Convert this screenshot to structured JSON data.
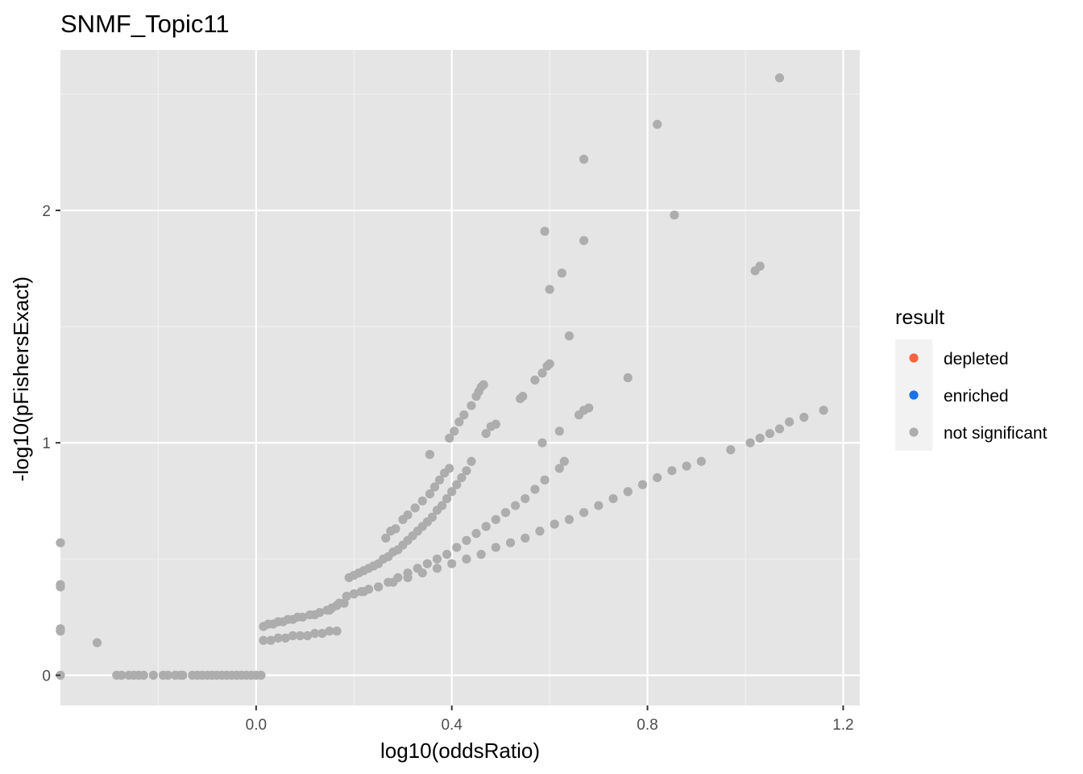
{
  "chart_data": {
    "type": "scatter",
    "title": "SNMF_Topic11",
    "xlabel": "log10(oddsRatio)",
    "ylabel": "-log10(pFishersExact)",
    "xlim": [
      -0.4,
      1.234
    ],
    "ylim": [
      -0.13,
      2.69
    ],
    "xticks": [
      0.0,
      0.4,
      0.8,
      1.2
    ],
    "xtick_labels": [
      "0.0",
      "0.4",
      "0.8",
      "1.2"
    ],
    "yticks": [
      0,
      1,
      2
    ],
    "ytick_labels": [
      "0",
      "1",
      "2"
    ],
    "grid": true,
    "legend": {
      "title": "result",
      "position": "right",
      "items": [
        {
          "label": "depleted",
          "color": "#F8633F"
        },
        {
          "label": "enriched",
          "color": "#1A73E8"
        },
        {
          "label": "not significant",
          "color": "#ADADAD"
        }
      ]
    },
    "series": [
      {
        "name": "not significant",
        "color": "#ADADAD",
        "points": [
          [
            -0.4,
            0.57
          ],
          [
            -0.4,
            0.39
          ],
          [
            -0.4,
            0.38
          ],
          [
            -0.4,
            0.2
          ],
          [
            -0.4,
            0.19
          ],
          [
            -0.4,
            0.0
          ],
          [
            -0.325,
            0.14
          ],
          [
            -0.285,
            0.0
          ],
          [
            -0.275,
            0.0
          ],
          [
            -0.26,
            0.0
          ],
          [
            -0.25,
            0.0
          ],
          [
            -0.24,
            0.0
          ],
          [
            -0.23,
            0.0
          ],
          [
            -0.21,
            0.0
          ],
          [
            -0.19,
            0.0
          ],
          [
            -0.18,
            0.0
          ],
          [
            -0.165,
            0.0
          ],
          [
            -0.155,
            0.0
          ],
          [
            -0.15,
            0.0
          ],
          [
            -0.13,
            0.0
          ],
          [
            -0.12,
            0.0
          ],
          [
            -0.11,
            0.0
          ],
          [
            -0.1,
            0.0
          ],
          [
            -0.09,
            0.0
          ],
          [
            -0.08,
            0.0
          ],
          [
            -0.07,
            0.0
          ],
          [
            -0.06,
            0.0
          ],
          [
            -0.05,
            0.0
          ],
          [
            -0.04,
            0.0
          ],
          [
            -0.03,
            0.0
          ],
          [
            -0.02,
            0.0
          ],
          [
            -0.01,
            0.0
          ],
          [
            0.0,
            0.0
          ],
          [
            0.01,
            0.0
          ],
          [
            0.015,
            0.21
          ],
          [
            0.025,
            0.22
          ],
          [
            0.035,
            0.22
          ],
          [
            0.045,
            0.23
          ],
          [
            0.055,
            0.23
          ],
          [
            0.065,
            0.24
          ],
          [
            0.075,
            0.24
          ],
          [
            0.085,
            0.25
          ],
          [
            0.095,
            0.25
          ],
          [
            0.11,
            0.26
          ],
          [
            0.12,
            0.26
          ],
          [
            0.13,
            0.27
          ],
          [
            0.145,
            0.28
          ],
          [
            0.155,
            0.29
          ],
          [
            0.165,
            0.3
          ],
          [
            0.18,
            0.31
          ],
          [
            0.19,
            0.42
          ],
          [
            0.2,
            0.43
          ],
          [
            0.21,
            0.44
          ],
          [
            0.22,
            0.45
          ],
          [
            0.23,
            0.46
          ],
          [
            0.24,
            0.47
          ],
          [
            0.25,
            0.48
          ],
          [
            0.26,
            0.5
          ],
          [
            0.27,
            0.51
          ],
          [
            0.28,
            0.53
          ],
          [
            0.29,
            0.54
          ],
          [
            0.3,
            0.56
          ],
          [
            0.31,
            0.58
          ],
          [
            0.32,
            0.6
          ],
          [
            0.33,
            0.62
          ],
          [
            0.34,
            0.64
          ],
          [
            0.35,
            0.66
          ],
          [
            0.36,
            0.68
          ],
          [
            0.37,
            0.71
          ],
          [
            0.38,
            0.73
          ],
          [
            0.39,
            0.76
          ],
          [
            0.4,
            0.79
          ],
          [
            0.41,
            0.82
          ],
          [
            0.42,
            0.85
          ],
          [
            0.43,
            0.88
          ],
          [
            0.44,
            0.92
          ],
          [
            0.265,
            0.59
          ],
          [
            0.275,
            0.62
          ],
          [
            0.285,
            0.63
          ],
          [
            0.3,
            0.67
          ],
          [
            0.31,
            0.69
          ],
          [
            0.325,
            0.72
          ],
          [
            0.34,
            0.75
          ],
          [
            0.355,
            0.78
          ],
          [
            0.365,
            0.81
          ],
          [
            0.375,
            0.84
          ],
          [
            0.385,
            0.87
          ],
          [
            0.395,
            0.89
          ],
          [
            0.355,
            0.95
          ],
          [
            0.395,
            1.02
          ],
          [
            0.405,
            1.05
          ],
          [
            0.415,
            1.09
          ],
          [
            0.425,
            1.12
          ],
          [
            0.44,
            1.16
          ],
          [
            0.45,
            1.2
          ],
          [
            0.455,
            1.22
          ],
          [
            0.46,
            1.24
          ],
          [
            0.465,
            1.25
          ],
          [
            0.015,
            0.15
          ],
          [
            0.03,
            0.15
          ],
          [
            0.045,
            0.16
          ],
          [
            0.06,
            0.16
          ],
          [
            0.075,
            0.17
          ],
          [
            0.09,
            0.17
          ],
          [
            0.105,
            0.17
          ],
          [
            0.12,
            0.18
          ],
          [
            0.135,
            0.18
          ],
          [
            0.15,
            0.19
          ],
          [
            0.165,
            0.19
          ],
          [
            0.15,
            0.28
          ],
          [
            0.17,
            0.31
          ],
          [
            0.185,
            0.34
          ],
          [
            0.2,
            0.35
          ],
          [
            0.215,
            0.36
          ],
          [
            0.23,
            0.37
          ],
          [
            0.25,
            0.38
          ],
          [
            0.27,
            0.4
          ],
          [
            0.29,
            0.42
          ],
          [
            0.31,
            0.44
          ],
          [
            0.33,
            0.46
          ],
          [
            0.35,
            0.48
          ],
          [
            0.37,
            0.5
          ],
          [
            0.39,
            0.52
          ],
          [
            0.41,
            0.55
          ],
          [
            0.43,
            0.58
          ],
          [
            0.45,
            0.61
          ],
          [
            0.47,
            0.64
          ],
          [
            0.49,
            0.67
          ],
          [
            0.51,
            0.7
          ],
          [
            0.53,
            0.73
          ],
          [
            0.55,
            0.76
          ],
          [
            0.57,
            0.8
          ],
          [
            0.59,
            0.84
          ],
          [
            0.47,
            1.04
          ],
          [
            0.48,
            1.07
          ],
          [
            0.49,
            1.08
          ],
          [
            0.54,
            1.19
          ],
          [
            0.545,
            1.2
          ],
          [
            0.57,
            1.27
          ],
          [
            0.585,
            1.3
          ],
          [
            0.595,
            1.33
          ],
          [
            0.6,
            1.34
          ],
          [
            0.585,
            1.0
          ],
          [
            0.62,
            1.05
          ],
          [
            0.66,
            1.12
          ],
          [
            0.67,
            1.14
          ],
          [
            0.68,
            1.15
          ],
          [
            0.62,
            0.89
          ],
          [
            0.63,
            0.92
          ],
          [
            0.64,
            1.46
          ],
          [
            0.6,
            1.66
          ],
          [
            0.625,
            1.73
          ],
          [
            0.59,
            1.91
          ],
          [
            0.67,
            1.87
          ],
          [
            0.67,
            2.22
          ],
          [
            0.76,
            1.28
          ],
          [
            0.82,
            2.37
          ],
          [
            0.855,
            1.98
          ],
          [
            1.02,
            1.74
          ],
          [
            1.03,
            1.76
          ],
          [
            1.07,
            2.57
          ],
          [
            0.2,
            0.35
          ],
          [
            0.22,
            0.36
          ],
          [
            0.25,
            0.38
          ],
          [
            0.28,
            0.4
          ],
          [
            0.31,
            0.42
          ],
          [
            0.34,
            0.44
          ],
          [
            0.37,
            0.46
          ],
          [
            0.4,
            0.48
          ],
          [
            0.43,
            0.5
          ],
          [
            0.46,
            0.52
          ],
          [
            0.49,
            0.55
          ],
          [
            0.52,
            0.57
          ],
          [
            0.55,
            0.59
          ],
          [
            0.58,
            0.62
          ],
          [
            0.61,
            0.65
          ],
          [
            0.64,
            0.67
          ],
          [
            0.67,
            0.7
          ],
          [
            0.7,
            0.73
          ],
          [
            0.73,
            0.76
          ],
          [
            0.76,
            0.79
          ],
          [
            0.79,
            0.82
          ],
          [
            0.82,
            0.85
          ],
          [
            0.85,
            0.88
          ],
          [
            0.88,
            0.9
          ],
          [
            0.91,
            0.92
          ],
          [
            0.97,
            0.97
          ],
          [
            1.01,
            1.0
          ],
          [
            1.03,
            1.02
          ],
          [
            1.05,
            1.04
          ],
          [
            1.07,
            1.06
          ],
          [
            1.09,
            1.09
          ],
          [
            1.12,
            1.11
          ],
          [
            1.16,
            1.14
          ]
        ]
      }
    ]
  }
}
